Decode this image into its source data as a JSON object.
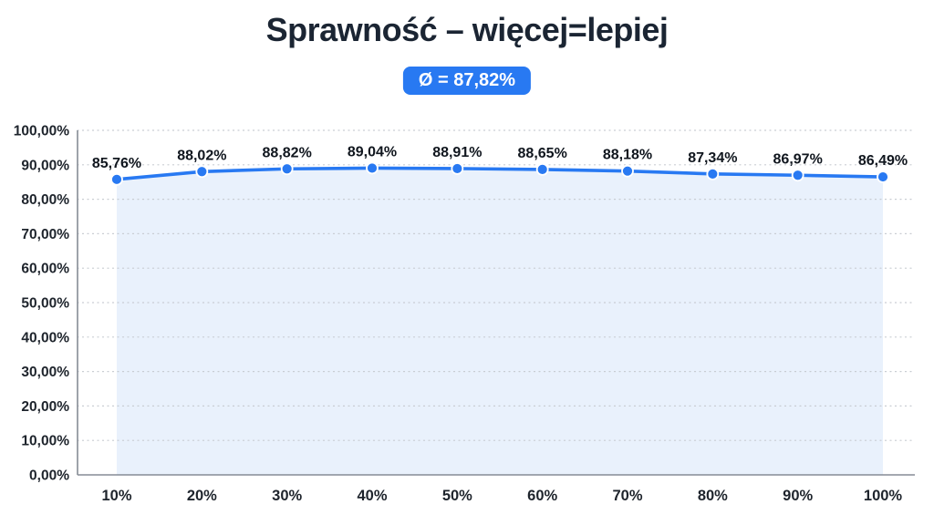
{
  "title": "Sprawność – więcej=lepiej",
  "badge": {
    "label": "Ø = 87,82%",
    "bg_color": "#2879f2",
    "text_color": "#ffffff"
  },
  "chart_data": {
    "type": "area",
    "title": "Sprawność – więcej=lepiej",
    "average": 87.82,
    "average_label": "Ø = 87,82%",
    "categories": [
      "10%",
      "20%",
      "30%",
      "40%",
      "50%",
      "60%",
      "70%",
      "80%",
      "90%",
      "100%"
    ],
    "values": [
      85.76,
      88.02,
      88.82,
      89.04,
      88.91,
      88.65,
      88.18,
      87.34,
      86.97,
      86.49
    ],
    "point_labels": [
      "85,76%",
      "88,02%",
      "88,82%",
      "89,04%",
      "88,91%",
      "88,65%",
      "88,18%",
      "87,34%",
      "86,97%",
      "86,49%"
    ],
    "y_ticks": [
      "0,00%",
      "10,00%",
      "20,00%",
      "30,00%",
      "40,00%",
      "50,00%",
      "60,00%",
      "70,00%",
      "80,00%",
      "90,00%",
      "100,00%"
    ],
    "ylim": [
      0,
      100
    ],
    "grid": "horizontal-dotted",
    "legend": "none",
    "line_color": "#2879f2",
    "marker_color": "#2879f2",
    "marker_outline_color": "#ffffff",
    "fill_color": "#e9f1fc",
    "gridline_color": "#c7cbd1",
    "axis_line_color": "#868c95",
    "tick_label_color": "#1e242c",
    "data_label_color": "#10161e"
  }
}
